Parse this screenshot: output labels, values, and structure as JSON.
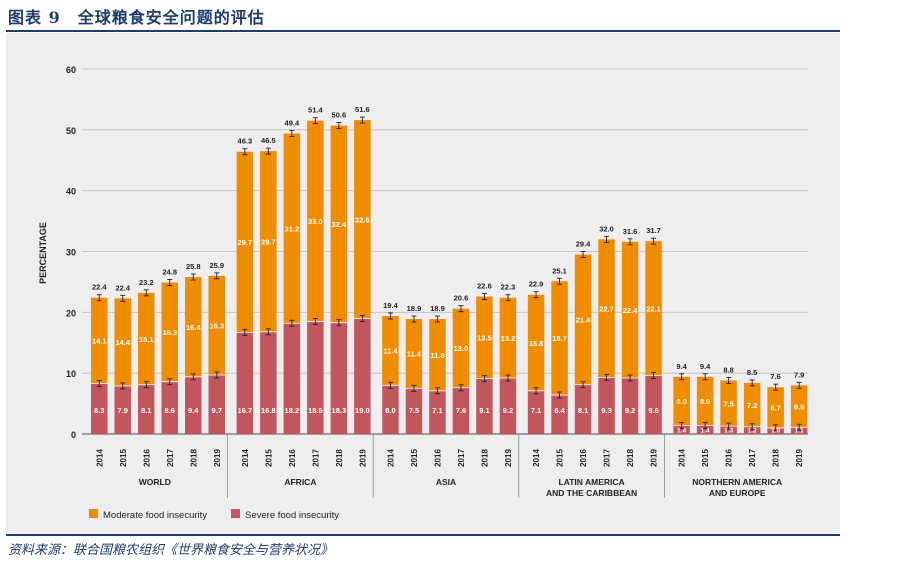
{
  "title": "图表 9　全球粮食安全问题的评估",
  "source": "资料来源：联合国粮农组织《世界粮食安全与营养状况》",
  "colors": {
    "moderate": "#f08c00",
    "severe": "#c3565c",
    "background": "#eeeef0",
    "accent": "#1f3d6b"
  },
  "chart_data": {
    "type": "bar",
    "stacked": true,
    "ylabel": "PERCENTAGE",
    "ylim": [
      0,
      60
    ],
    "yticks": [
      "0",
      "10",
      "20",
      "30",
      "40",
      "50",
      "60"
    ],
    "grid": true,
    "legend": {
      "position": "bottom-left",
      "moderate_label": "Moderate food insecurity",
      "severe_label": "Severe food insecurity"
    },
    "groups": [
      {
        "name_lines": [
          "WORLD"
        ],
        "years": [
          "2014",
          "2015",
          "2016",
          "2017",
          "2018",
          "2019"
        ],
        "severe": [
          8.3,
          7.9,
          8.1,
          8.6,
          9.4,
          9.7
        ],
        "moderate": [
          14.1,
          14.4,
          15.1,
          16.3,
          16.4,
          16.3
        ],
        "severe_labels": [
          "8.3",
          "7.9",
          "8.1",
          "8.6",
          "9.4",
          "9.7"
        ],
        "moderate_labels": [
          "14.1",
          "14.4",
          "15.1",
          "16.3",
          "16.4",
          "16.3"
        ],
        "total_labels": [
          "22.4",
          "22.4",
          "23.2",
          "24.8",
          "25.8",
          "25.9"
        ]
      },
      {
        "name_lines": [
          "AFRICA"
        ],
        "years": [
          "2014",
          "2015",
          "2016",
          "2017",
          "2018",
          "2019"
        ],
        "severe": [
          16.7,
          16.8,
          18.2,
          18.5,
          18.3,
          19.0
        ],
        "moderate": [
          29.7,
          29.7,
          31.2,
          33.0,
          32.4,
          32.6
        ],
        "severe_labels": [
          "16.7",
          "16.8",
          "18.2",
          "18.5",
          "18.3",
          "19.0"
        ],
        "moderate_labels": [
          "29.7",
          "29.7",
          "31.2",
          "33.0",
          "32.4",
          "32.6"
        ],
        "total_labels": [
          "46.3",
          "46.5",
          "49.4",
          "51.4",
          "50.6",
          "51.6"
        ]
      },
      {
        "name_lines": [
          "ASIA"
        ],
        "years": [
          "2014",
          "2015",
          "2016",
          "2017",
          "2018",
          "2019"
        ],
        "severe": [
          8.0,
          7.5,
          7.1,
          7.6,
          9.1,
          9.2
        ],
        "moderate": [
          11.4,
          11.4,
          11.8,
          13.0,
          13.5,
          13.2
        ],
        "severe_labels": [
          "8.0",
          "7.5",
          "7.1",
          "7.6",
          "9.1",
          "9.2"
        ],
        "moderate_labels": [
          "11.4",
          "11.4",
          "11.8",
          "13.0",
          "13.5",
          "13.2"
        ],
        "total_labels": [
          "19.4",
          "18.9",
          "18.9",
          "20.6",
          "22.6",
          "22.3"
        ]
      },
      {
        "name_lines": [
          "LATIN AMERICA",
          "AND THE CARIBBEAN"
        ],
        "years": [
          "2014",
          "2015",
          "2016",
          "2017",
          "2018",
          "2019"
        ],
        "severe": [
          7.1,
          6.4,
          8.1,
          9.3,
          9.2,
          9.6
        ],
        "moderate": [
          15.8,
          18.7,
          21.4,
          22.7,
          22.4,
          22.1
        ],
        "severe_labels": [
          "7.1",
          "6.4",
          "8.1",
          "9.3",
          "9.2",
          "9.6"
        ],
        "moderate_labels": [
          "15.8",
          "18.7",
          "21.4",
          "22.7",
          "22.4",
          "22.1"
        ],
        "total_labels": [
          "22.9",
          "25.1",
          "29.4",
          "32.0",
          "31.6",
          "31.7"
        ]
      },
      {
        "name_lines": [
          "NORTHERN AMERICA",
          "AND EUROPE"
        ],
        "years": [
          "2014",
          "2015",
          "2016",
          "2017",
          "2018",
          "2019"
        ],
        "severe": [
          1.4,
          1.4,
          1.3,
          1.2,
          1.0,
          1.1
        ],
        "moderate": [
          8.0,
          8.0,
          7.5,
          7.2,
          6.7,
          6.9
        ],
        "severe_labels": [
          "1.4",
          "1.4",
          "1.3",
          "1.2",
          "1.0",
          "1.1"
        ],
        "moderate_labels": [
          "8.0",
          "8.0",
          "7.5",
          "7.2",
          "6.7",
          "6.9"
        ],
        "total_labels": [
          "9.4",
          "9.4",
          "8.8",
          "8.5",
          "7.6",
          "7.9"
        ]
      }
    ]
  }
}
